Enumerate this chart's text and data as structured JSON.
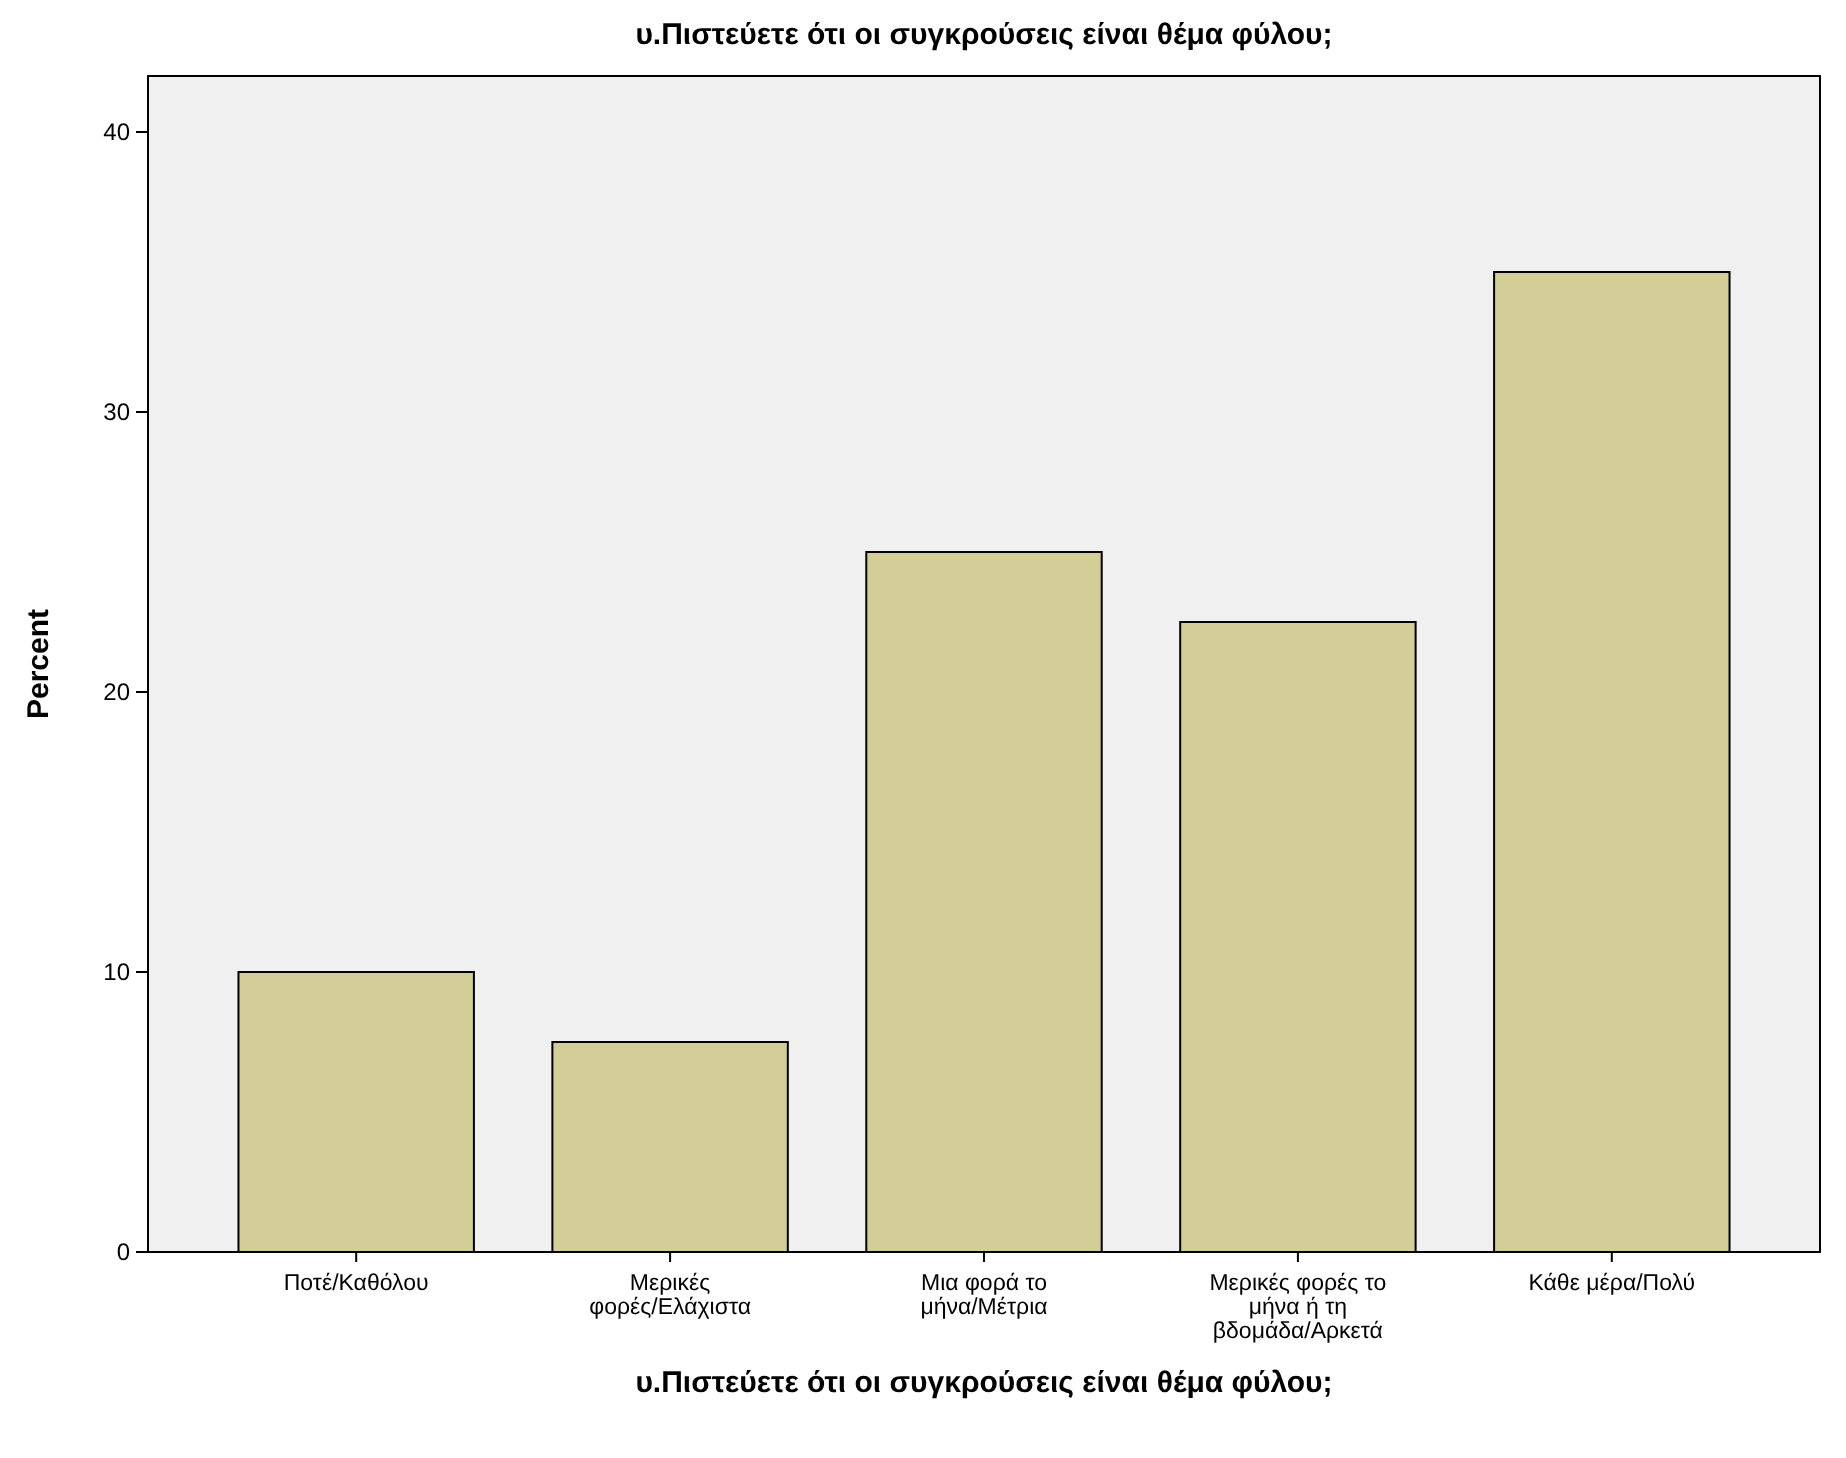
{
  "chart_data": {
    "type": "bar",
    "title": "υ.Πιστεύετε ότι οι συγκρούσεις είναι θέμα φύλου;",
    "xlabel": "υ.Πιστεύετε ότι οι συγκρούσεις είναι θέμα φύλου;",
    "ylabel": "Percent",
    "categories": [
      "Ποτέ/Καθόλου",
      "Μερικές φορές/Ελάχιστα",
      "Μια φορά το μήνα/Μέτρια",
      "Μερικές φορές το μήνα ή τη βδομάδα/Αρκετά",
      "Κάθε μέρα/Πολύ"
    ],
    "values": [
      10,
      7.5,
      25,
      22.5,
      35
    ],
    "color": "#d3ce97",
    "ylim": [
      0,
      42
    ],
    "yticks": [
      0,
      10,
      20,
      30,
      40
    ],
    "grid": false
  }
}
